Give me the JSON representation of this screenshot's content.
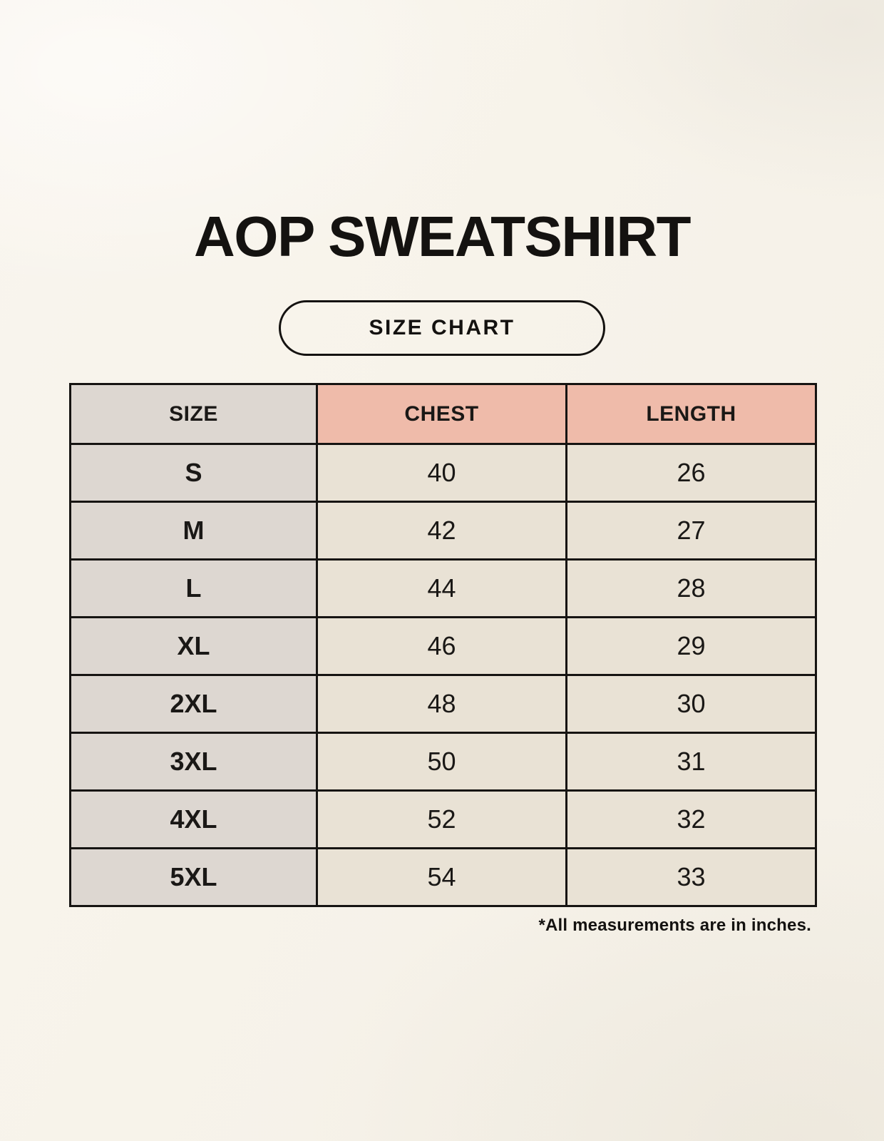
{
  "page": {
    "title": "AOP SWEATSHIRT",
    "badge_label": "SIZE CHART",
    "footnote": "*All measurements are in inches."
  },
  "colors": {
    "page_background": "#f7f3ec",
    "size_column_fill": "#ddd7d1",
    "accent_header_fill": "#efbbaa",
    "value_cell_fill": "#e9e2d5",
    "border": "#161412",
    "text": "#141210"
  },
  "chart_data": {
    "type": "table",
    "title": "AOP SWEATSHIRT",
    "subtitle": "SIZE CHART",
    "units": "inches",
    "note": "*All measurements are in inches.",
    "columns": [
      "SIZE",
      "CHEST",
      "LENGTH"
    ],
    "rows": [
      {
        "size": "S",
        "chest": 40,
        "length": 26
      },
      {
        "size": "M",
        "chest": 42,
        "length": 27
      },
      {
        "size": "L",
        "chest": 44,
        "length": 28
      },
      {
        "size": "XL",
        "chest": 46,
        "length": 29
      },
      {
        "size": "2XL",
        "chest": 48,
        "length": 30
      },
      {
        "size": "3XL",
        "chest": 50,
        "length": 31
      },
      {
        "size": "4XL",
        "chest": 52,
        "length": 32
      },
      {
        "size": "5XL",
        "chest": 54,
        "length": 33
      }
    ]
  }
}
